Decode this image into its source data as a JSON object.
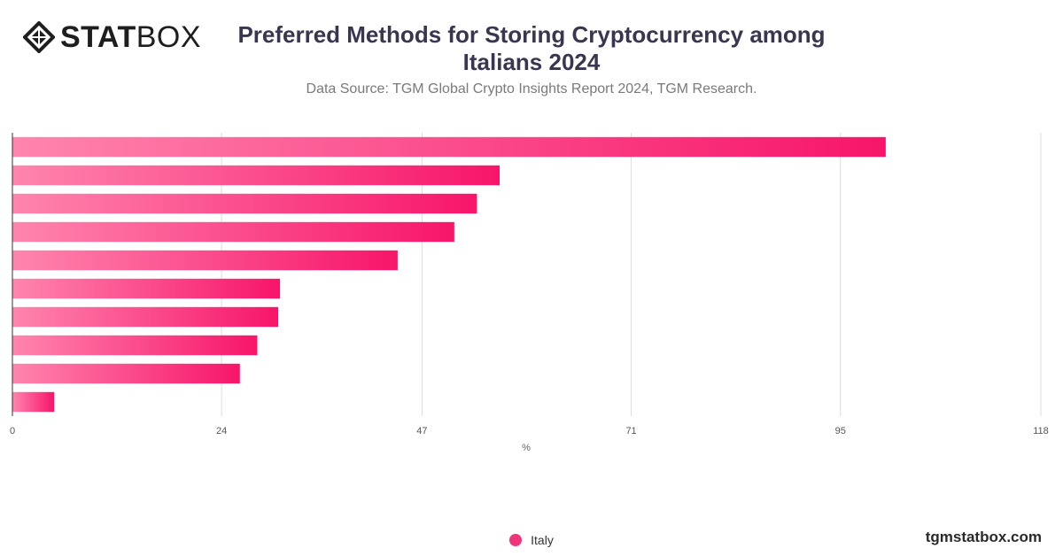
{
  "brand": {
    "logo_bold": "STAT",
    "logo_light": "BOX",
    "site": "tgmstatbox.com"
  },
  "colors": {
    "bar_start": "#ff85ae",
    "bar_end": "#f7156a",
    "legend": "#f0357a",
    "grid": "#dedede"
  },
  "chart_data": {
    "type": "bar",
    "orientation": "horizontal",
    "title": "Preferred Methods for Storing Cryptocurrency among Italians 2024",
    "subtitle": "Data Source: TGM Global Crypto Insights Report 2024, TGM Research.",
    "xlabel": "%",
    "xlim": [
      0,
      118
    ],
    "x_ticks": [
      "0",
      "24",
      "47",
      "71",
      "95",
      "118"
    ],
    "categories": [
      "",
      "",
      "",
      "",
      "",
      "",
      "",
      "",
      "",
      ""
    ],
    "series": [
      {
        "name": "Italy",
        "values": [
          100.2,
          55.9,
          53.3,
          50.7,
          44.2,
          30.7,
          30.5,
          28.1,
          26.1,
          4.8
        ]
      }
    ],
    "grid": true,
    "legend_position": "bottom-center"
  }
}
